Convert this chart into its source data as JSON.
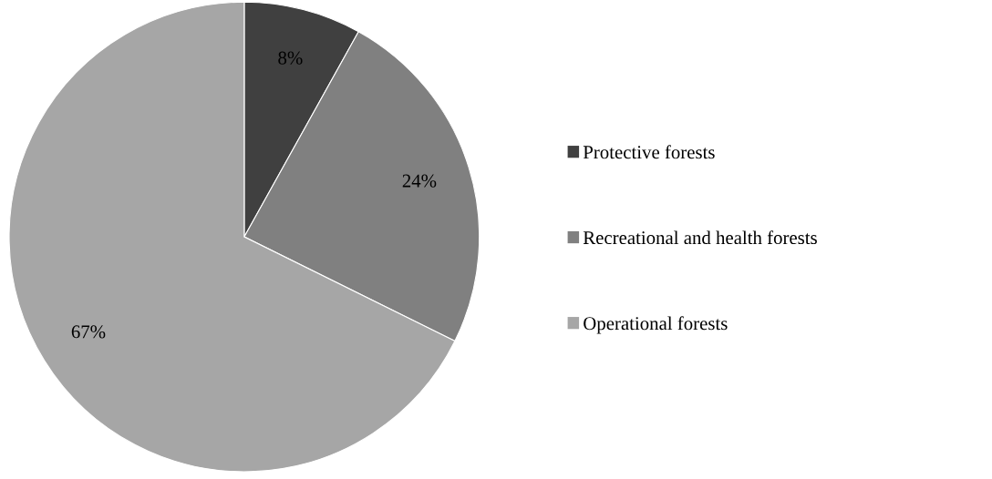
{
  "chart_data": {
    "type": "pie",
    "categories": [
      "Protective forests",
      "Recreational and health forests",
      "Operational forests"
    ],
    "values": [
      8,
      24,
      67
    ],
    "colors": [
      "#404040",
      "#808080",
      "#a6a6a6"
    ],
    "data_labels": true,
    "value_labels": [
      "8%",
      "24%",
      "67%"
    ],
    "legend": "right"
  }
}
